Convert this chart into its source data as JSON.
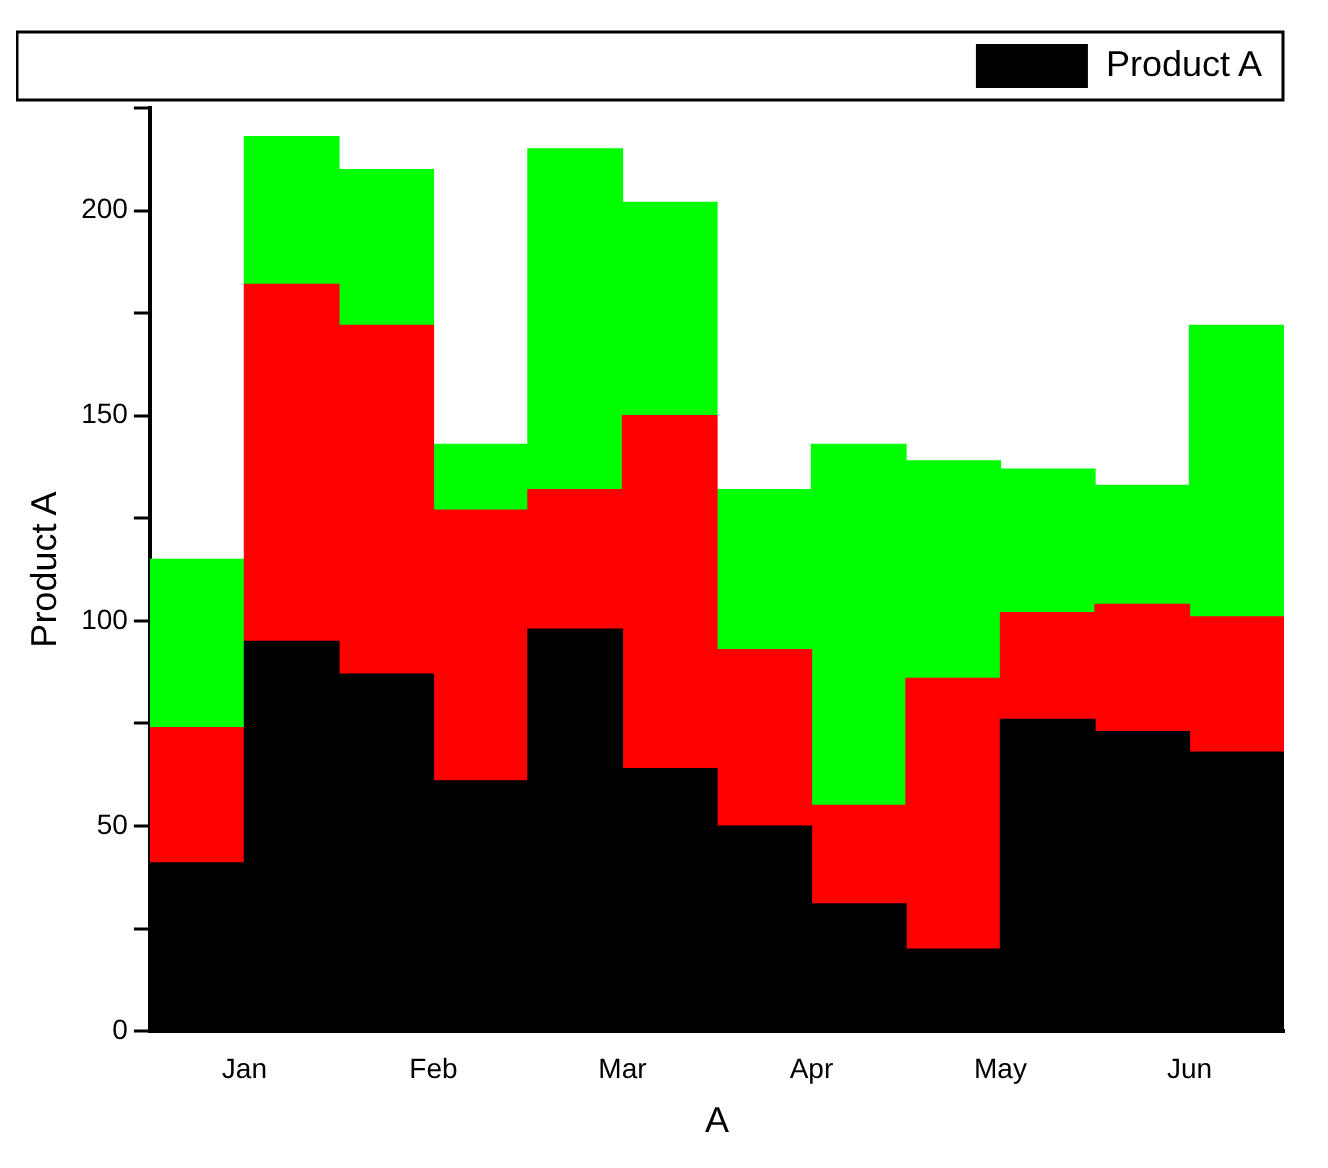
{
  "chart_data": {
    "type": "bar",
    "stacked": true,
    "xlabel": "A",
    "ylabel": "Product A",
    "categories": [
      "Jan",
      null,
      "Feb",
      null,
      "Mar",
      null,
      "Apr",
      null,
      "May",
      null,
      "Jun",
      null
    ],
    "series": [
      {
        "name": "Product A",
        "color": "#000000",
        "values": [
          41,
          95,
          87,
          61,
          98,
          64,
          50,
          31,
          20,
          76,
          73,
          68
        ]
      },
      {
        "color": "#ff0000",
        "values": [
          33,
          87,
          85,
          66,
          34,
          86,
          43,
          24,
          66,
          26,
          31,
          33
        ]
      },
      {
        "color": "#00ff00",
        "values": [
          41,
          36,
          38,
          16,
          83,
          52,
          39,
          88,
          53,
          35,
          29,
          71
        ]
      }
    ],
    "ylim": [
      0,
      225
    ],
    "yticks": [
      0,
      {
        "value": 25,
        "label": null
      },
      50,
      {
        "value": 75,
        "label": null
      },
      100,
      {
        "value": 125,
        "label": null
      },
      150,
      {
        "value": 175,
        "label": null
      },
      200,
      {
        "value": 225,
        "label": null
      }
    ],
    "grid": false,
    "legend": "top right"
  }
}
